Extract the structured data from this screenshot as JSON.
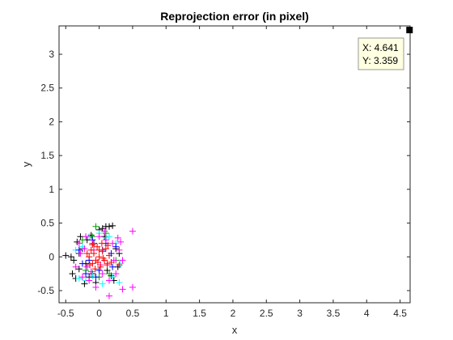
{
  "chart_data": {
    "type": "scatter",
    "title": "Reprojection error (in pixel)",
    "xlabel": "x",
    "ylabel": "y",
    "xlim": [
      -0.6,
      4.65
    ],
    "ylim": [
      -0.68,
      3.42
    ],
    "xticks": [
      -0.5,
      0,
      0.5,
      1,
      1.5,
      2,
      2.5,
      3,
      3.5,
      4,
      4.5
    ],
    "xtick_labels": [
      "-0.5",
      "0",
      "0.5",
      "1",
      "1.5",
      "2",
      "2.5",
      "3",
      "3.5",
      "4",
      "4.5"
    ],
    "yticks": [
      -0.5,
      0,
      0.5,
      1,
      1.5,
      2,
      2.5,
      3
    ],
    "ytick_labels": [
      "-0.5",
      "0",
      "0.5",
      "1",
      "1.5",
      "2",
      "2.5",
      "3"
    ],
    "grid": false,
    "marker": "+",
    "series": [
      {
        "color": "#000000",
        "points": [
          [
            -0.5,
            0.02
          ],
          [
            -0.42,
            0.0
          ],
          [
            -0.4,
            -0.25
          ],
          [
            -0.35,
            -0.32
          ],
          [
            -0.33,
            0.22
          ],
          [
            -0.3,
            -0.18
          ],
          [
            -0.28,
            0.3
          ],
          [
            -0.25,
            0.12
          ],
          [
            -0.22,
            -0.4
          ],
          [
            -0.18,
            0.25
          ],
          [
            -0.15,
            -0.3
          ],
          [
            -0.12,
            0.32
          ],
          [
            -0.05,
            -0.38
          ],
          [
            0.0,
            0.4
          ],
          [
            0.05,
            0.42
          ],
          [
            0.1,
            0.45
          ],
          [
            0.15,
            0.45
          ],
          [
            0.2,
            0.46
          ],
          [
            0.22,
            -0.35
          ],
          [
            0.25,
            0.12
          ],
          [
            0.3,
            0.05
          ],
          [
            -0.2,
            -0.1
          ],
          [
            -0.08,
            0.2
          ],
          [
            0.12,
            -0.2
          ],
          [
            -0.3,
            0.05
          ],
          [
            0.18,
            -0.28
          ],
          [
            -0.1,
            -0.25
          ],
          [
            0.28,
            -0.15
          ],
          [
            -0.38,
            -0.05
          ],
          [
            0.08,
            0.3
          ]
        ]
      },
      {
        "color": "#00ffff",
        "points": [
          [
            -0.3,
            -0.32
          ],
          [
            -0.2,
            -0.35
          ],
          [
            -0.15,
            0.3
          ],
          [
            -0.1,
            -0.28
          ],
          [
            0.0,
            0.35
          ],
          [
            0.05,
            -0.4
          ],
          [
            0.15,
            0.3
          ],
          [
            0.2,
            -0.3
          ],
          [
            0.3,
            -0.38
          ],
          [
            0.25,
            0.2
          ],
          [
            -0.25,
            0.15
          ],
          [
            0.1,
            0.28
          ],
          [
            0.32,
            -0.1
          ],
          [
            -0.35,
            0.1
          ]
        ]
      },
      {
        "color": "#00a000",
        "points": [
          [
            -0.25,
            0.25
          ],
          [
            -0.05,
            0.45
          ],
          [
            0.1,
            0.35
          ],
          [
            -0.2,
            -0.2
          ],
          [
            0.25,
            -0.05
          ],
          [
            -0.1,
            0.3
          ],
          [
            0.15,
            -0.25
          ],
          [
            0.0,
            -0.3
          ]
        ]
      },
      {
        "color": "#0000ff",
        "points": [
          [
            -0.3,
            0.1
          ],
          [
            -0.2,
            -0.25
          ],
          [
            -0.1,
            0.25
          ],
          [
            0.0,
            -0.2
          ],
          [
            0.1,
            0.2
          ],
          [
            0.2,
            -0.15
          ],
          [
            0.25,
            0.15
          ],
          [
            -0.15,
            -0.05
          ],
          [
            0.05,
            0.1
          ],
          [
            -0.25,
            -0.1
          ],
          [
            0.18,
            0.05
          ],
          [
            -0.05,
            -0.3
          ]
        ]
      },
      {
        "color": "#ff00ff",
        "points": [
          [
            -0.35,
            -0.15
          ],
          [
            -0.3,
            0.2
          ],
          [
            -0.25,
            -0.3
          ],
          [
            -0.2,
            0.3
          ],
          [
            -0.15,
            -0.35
          ],
          [
            -0.1,
            0.2
          ],
          [
            -0.05,
            -0.45
          ],
          [
            0.0,
            0.3
          ],
          [
            0.05,
            -0.25
          ],
          [
            0.1,
            0.25
          ],
          [
            0.15,
            -0.35
          ],
          [
            0.2,
            0.2
          ],
          [
            0.25,
            -0.25
          ],
          [
            0.3,
            0.1
          ],
          [
            0.35,
            -0.05
          ],
          [
            0.5,
            -0.45
          ],
          [
            0.35,
            -0.48
          ],
          [
            0.15,
            -0.58
          ],
          [
            0.5,
            0.38
          ],
          [
            -0.28,
            0.05
          ],
          [
            -0.18,
            -0.15
          ],
          [
            0.12,
            -0.1
          ],
          [
            0.28,
            0.28
          ],
          [
            -0.08,
            0.1
          ],
          [
            0.22,
            -0.05
          ],
          [
            -0.22,
            0.12
          ],
          [
            0.02,
            -0.12
          ],
          [
            0.08,
            0.38
          ],
          [
            -0.12,
            -0.22
          ],
          [
            0.32,
            0.22
          ]
        ]
      },
      {
        "color": "#ff0000",
        "points": [
          [
            -0.15,
            0.0
          ],
          [
            -0.12,
            0.1
          ],
          [
            -0.1,
            -0.1
          ],
          [
            -0.08,
            0.05
          ],
          [
            -0.05,
            -0.05
          ],
          [
            -0.03,
            0.15
          ],
          [
            0.0,
            0.0
          ],
          [
            0.02,
            -0.15
          ],
          [
            0.05,
            0.08
          ],
          [
            0.08,
            -0.05
          ],
          [
            0.1,
            0.12
          ],
          [
            0.12,
            -0.12
          ],
          [
            0.15,
            0.02
          ],
          [
            -0.06,
            -0.18
          ],
          [
            0.04,
            0.2
          ],
          [
            0.18,
            -0.08
          ],
          [
            -0.18,
            0.05
          ],
          [
            0.0,
            0.1
          ],
          [
            0.06,
            -0.02
          ],
          [
            -0.02,
            -0.08
          ],
          [
            0.3,
            -0.12
          ],
          [
            -0.1,
            0.18
          ],
          [
            0.13,
            0.17
          ],
          [
            -0.14,
            -0.12
          ]
        ]
      }
    ],
    "datatip": {
      "x_text": "X: 4.641",
      "y_text": "Y: 3.359",
      "x": 4.641,
      "y": 3.359,
      "marker_color": "#000000",
      "background": "#ffffe1"
    }
  }
}
